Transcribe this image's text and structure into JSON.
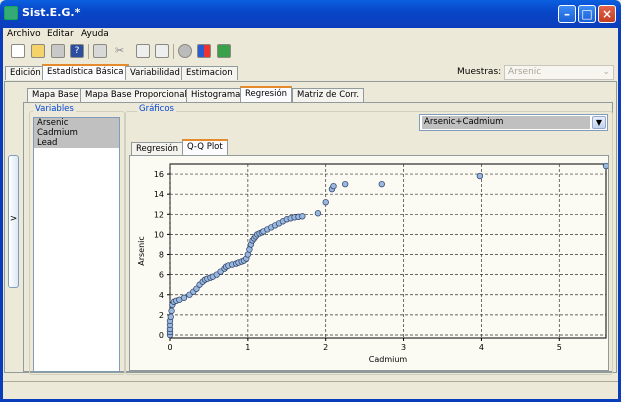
{
  "window": {
    "title": "Sist.E.G.*"
  },
  "menu": [
    "Archivo",
    "Editar",
    "Ayuda"
  ],
  "toolbar": {
    "icons": [
      "new-file-icon",
      "open-folder-icon",
      "save-icon",
      "help-icon",
      "print-icon",
      "cut-icon",
      "copy-icon",
      "paste-icon",
      "info-icon",
      "grid-app-icon",
      "exit-icon"
    ]
  },
  "main_tabs": [
    {
      "label": "Edición",
      "active": false
    },
    {
      "label": "Estadística Básica",
      "active": true
    },
    {
      "label": "Variabilidad",
      "active": false
    },
    {
      "label": "Estimacion",
      "active": false
    }
  ],
  "muestras": {
    "label": "Muestras:",
    "value": "Arsenic"
  },
  "sub_tabs": [
    {
      "label": "Mapa Base",
      "active": false
    },
    {
      "label": "Mapa Base Proporcional",
      "active": false
    },
    {
      "label": "Histograma",
      "active": false
    },
    {
      "label": "Regresión",
      "active": true
    },
    {
      "label": "Matriz de Corr.",
      "active": false
    }
  ],
  "variables": {
    "title": "Variables",
    "items": [
      "Arsenic",
      "Cadmium",
      "Lead"
    ]
  },
  "graficos": {
    "title": "Gráficos",
    "combo_value": "Arsenic+Cadmium"
  },
  "chart_tabs": [
    {
      "label": "Regresión",
      "active": false
    },
    {
      "label": "Q-Q Plot",
      "active": true
    }
  ],
  "side_toggle": ">",
  "chart_data": {
    "type": "scatter",
    "title": "",
    "xlabel": "Cadmium",
    "ylabel": "Arsenic",
    "xlim": [
      0,
      5.6
    ],
    "ylim": [
      -0.3,
      17
    ],
    "xticks": [
      0,
      1,
      2,
      3,
      4,
      5
    ],
    "yticks": [
      0,
      2,
      4,
      6,
      8,
      10,
      12,
      14,
      16
    ],
    "grid": true,
    "point_color": "#9ab8df",
    "x": [
      0,
      0,
      0,
      0,
      0,
      0.01,
      0.02,
      0.03,
      0.05,
      0.08,
      0.12,
      0.18,
      0.25,
      0.3,
      0.34,
      0.38,
      0.42,
      0.45,
      0.48,
      0.52,
      0.55,
      0.6,
      0.65,
      0.7,
      0.72,
      0.75,
      0.8,
      0.85,
      0.88,
      0.92,
      0.95,
      0.98,
      1.0,
      1.02,
      1.04,
      1.06,
      1.08,
      1.1,
      1.12,
      1.15,
      1.18,
      1.2,
      1.25,
      1.3,
      1.35,
      1.4,
      1.45,
      1.5,
      1.55,
      1.6,
      1.65,
      1.7,
      1.9,
      2.0,
      2.08,
      2.1,
      2.25,
      2.72,
      3.98,
      5.6
    ],
    "y": [
      0,
      0.3,
      0.6,
      1.0,
      1.4,
      1.8,
      2.4,
      3.0,
      3.3,
      3.4,
      3.5,
      3.7,
      4.0,
      4.3,
      4.6,
      5.0,
      5.3,
      5.5,
      5.6,
      5.7,
      5.8,
      6.0,
      6.3,
      6.6,
      6.8,
      6.9,
      7.0,
      7.1,
      7.2,
      7.3,
      7.4,
      7.6,
      8.0,
      8.5,
      9.0,
      9.4,
      9.6,
      9.8,
      10.0,
      10.1,
      10.2,
      10.3,
      10.5,
      10.7,
      10.9,
      11.1,
      11.3,
      11.5,
      11.6,
      11.7,
      11.75,
      11.8,
      12.1,
      13.2,
      14.5,
      14.8,
      15.0,
      15.0,
      15.8,
      16.8
    ]
  }
}
